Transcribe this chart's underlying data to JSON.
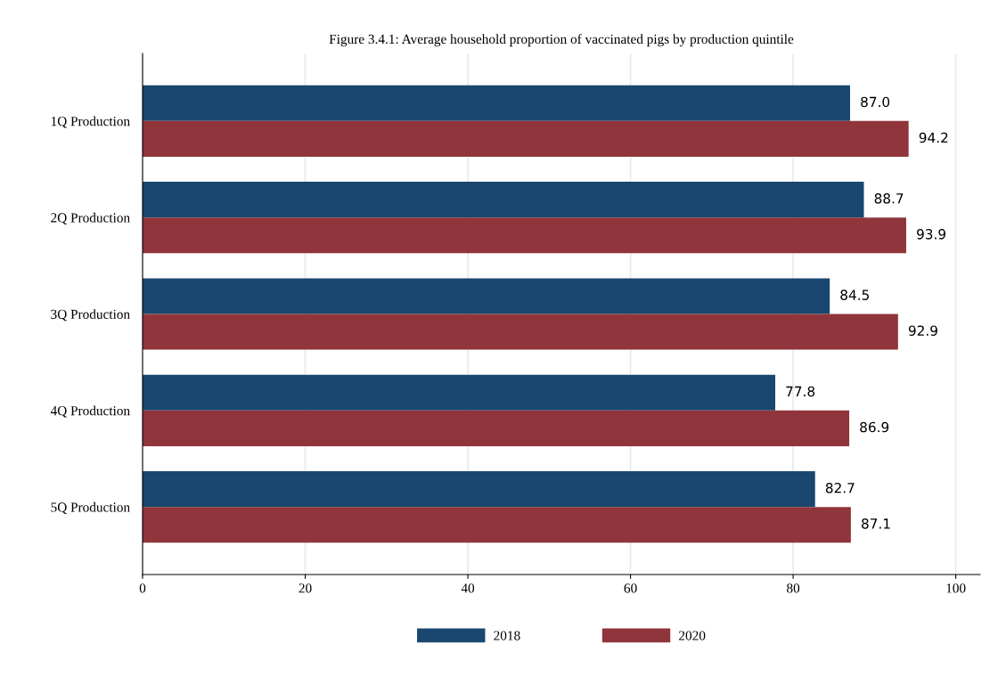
{
  "chart_data": {
    "type": "bar",
    "orientation": "horizontal",
    "title": "Figure 3.4.1: Average household proportion of vaccinated pigs by production quintile",
    "categories": [
      "1Q Production",
      "2Q Production",
      "3Q Production",
      "4Q Production",
      "5Q Production"
    ],
    "series": [
      {
        "name": "2018",
        "color": "#1a476f",
        "values": [
          87.0,
          88.7,
          84.5,
          77.8,
          82.7
        ],
        "value_labels": [
          "87.0",
          "88.7",
          "84.5",
          "77.8",
          "82.7"
        ]
      },
      {
        "name": "2020",
        "color": "#90353b",
        "values": [
          94.2,
          93.9,
          92.9,
          86.9,
          87.1
        ],
        "value_labels": [
          "94.2",
          "93.9",
          "92.9",
          "86.9",
          "87.1"
        ]
      }
    ],
    "xlim": [
      0,
      103
    ],
    "xticks": [
      0,
      20,
      40,
      60,
      80,
      100
    ],
    "grid": "x",
    "legend": "bottom"
  }
}
